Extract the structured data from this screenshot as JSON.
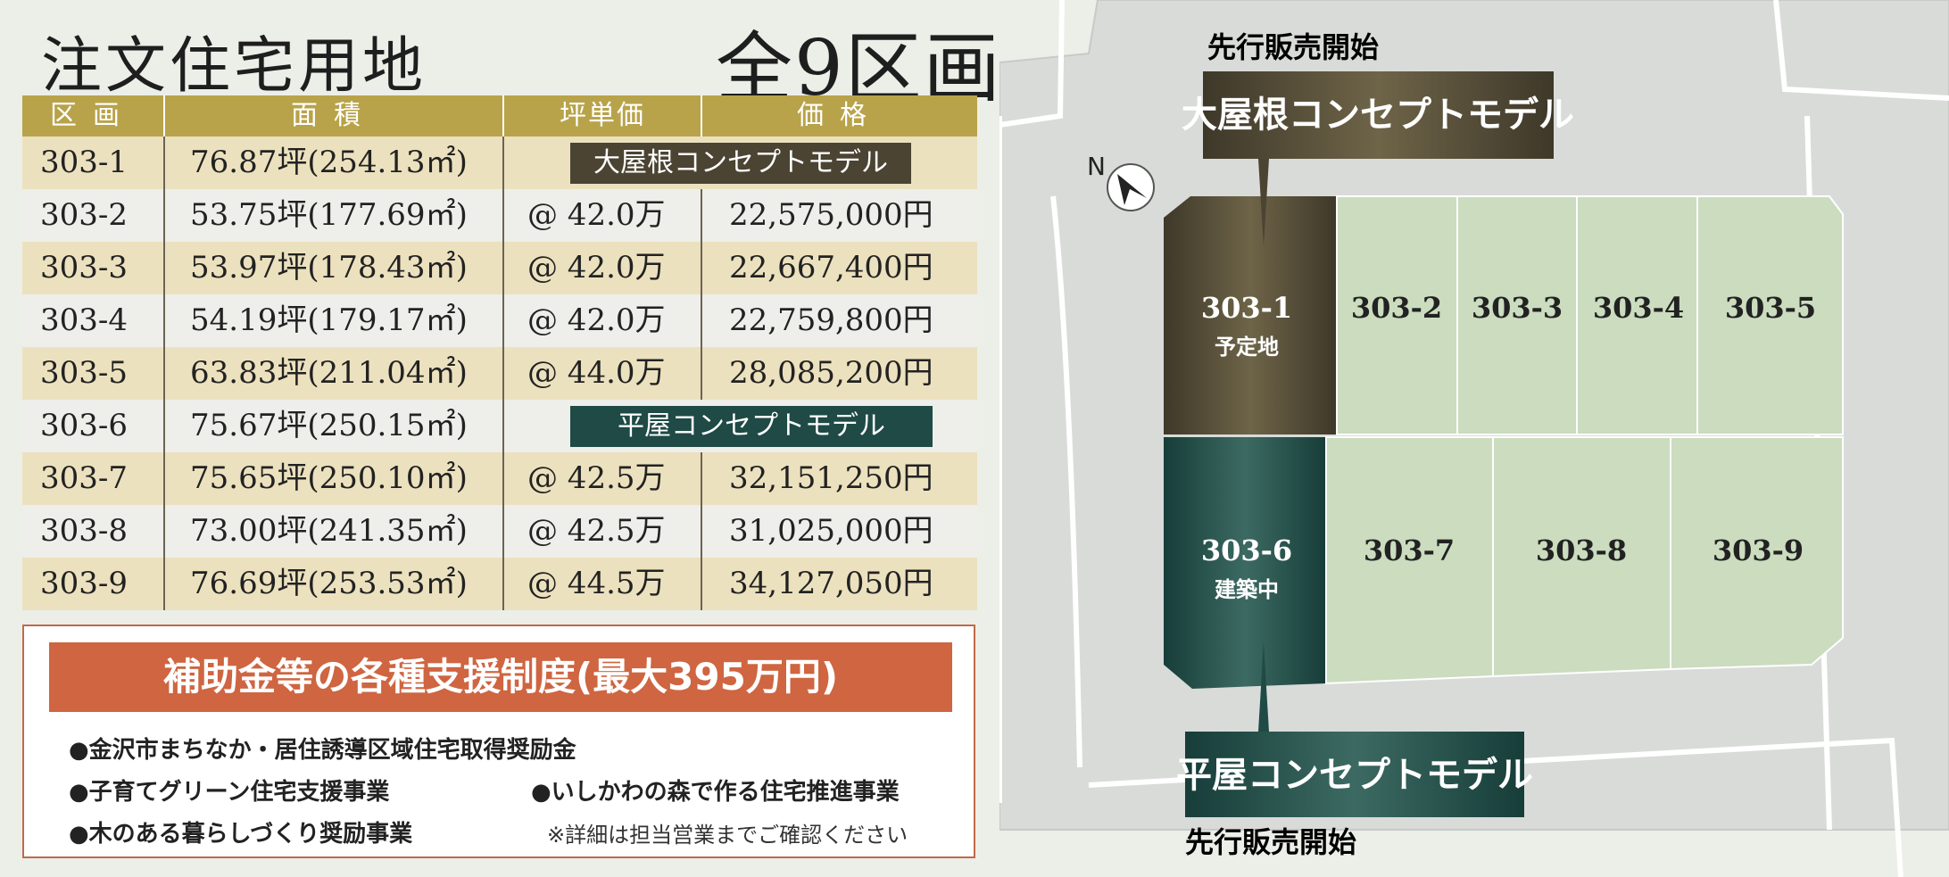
{
  "header": {
    "title": "注文住宅用地",
    "lot_count": "全9区画"
  },
  "table": {
    "headers": [
      "区画",
      "面積",
      "坪単価",
      "価格"
    ],
    "rows": [
      {
        "lot": "303-1",
        "area": "76.87坪(254.13㎡)",
        "model": "大屋根コンセプトモデル"
      },
      {
        "lot": "303-2",
        "area": "53.75坪(177.69㎡)",
        "unit_price": "@ 42.0万",
        "price": "22,575,000円"
      },
      {
        "lot": "303-3",
        "area": "53.97坪(178.43㎡)",
        "unit_price": "@ 42.0万",
        "price": "22,667,400円"
      },
      {
        "lot": "303-4",
        "area": "54.19坪(179.17㎡)",
        "unit_price": "@ 42.0万",
        "price": "22,759,800円"
      },
      {
        "lot": "303-5",
        "area": "63.83坪(211.04㎡)",
        "unit_price": "@ 44.0万",
        "price": "28,085,200円"
      },
      {
        "lot": "303-6",
        "area": "75.67坪(250.15㎡)",
        "model": "平屋コンセプトモデル"
      },
      {
        "lot": "303-7",
        "area": "75.65坪(250.10㎡)",
        "unit_price": "@ 42.5万",
        "price": "32,151,250円"
      },
      {
        "lot": "303-8",
        "area": "73.00坪(241.35㎡)",
        "unit_price": "@ 42.5万",
        "price": "31,025,000円"
      },
      {
        "lot": "303-9",
        "area": "76.69坪(253.53㎡)",
        "unit_price": "@ 44.5万",
        "price": "34,127,050円"
      }
    ]
  },
  "subsidy": {
    "title": "補助金等の各種支援制度(最大395万円)",
    "items": [
      "●金沢市まちなか・居住誘導区域住宅取得奨励金",
      "●子育てグリーン住宅支援事業",
      "●いしかわの森で作る住宅推進事業",
      "●木のある暮らしづくり奨励事業"
    ],
    "note": "※詳細は担当営業までご確認ください"
  },
  "map": {
    "north_label": "N",
    "sale_label_top": "先行販売開始",
    "sale_label_bottom": "先行販売開始",
    "callout_roof": "大屋根コンセプトモデル",
    "callout_flat": "平屋コンセプトモデル",
    "lots": {
      "l1": "303-1",
      "l1_status": "予定地",
      "l2": "303-2",
      "l3": "303-3",
      "l4": "303-4",
      "l5": "303-5",
      "l6": "303-6",
      "l6_status": "建築中",
      "l7": "303-7",
      "l8": "303-8",
      "l9": "303-9"
    },
    "colors": {
      "roof_model": "#4b4433",
      "flat_model": "#1f4a45",
      "lot_fill": "#cbdcbf",
      "road": "#d9dbd9"
    }
  }
}
